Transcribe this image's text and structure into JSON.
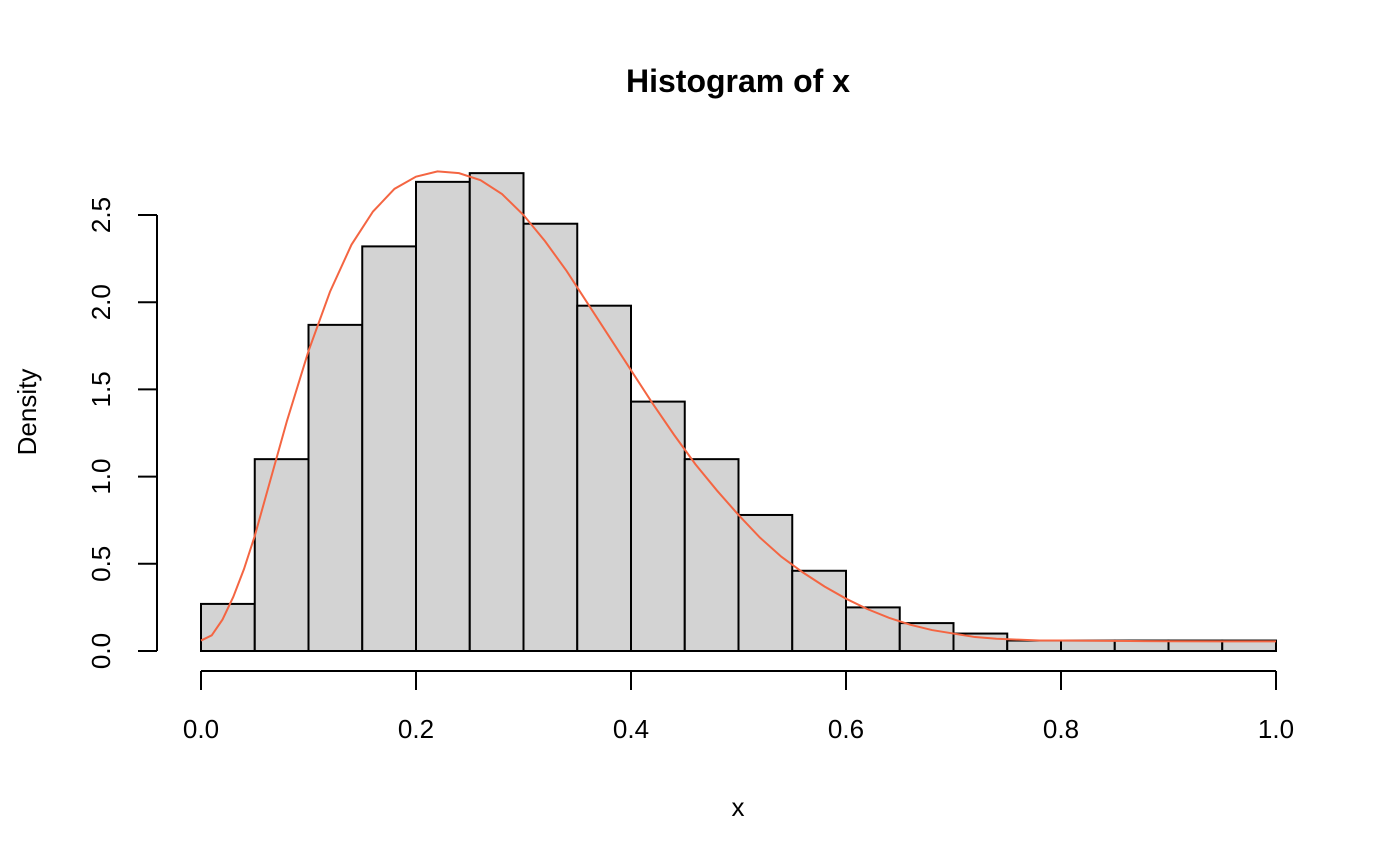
{
  "chart_data": {
    "type": "bar",
    "title": "Histogram of x",
    "xlabel": "x",
    "ylabel": "Density",
    "xlim": [
      0,
      1
    ],
    "ylim": [
      0,
      2.75
    ],
    "breaks": [
      0.0,
      0.05,
      0.1,
      0.15,
      0.2,
      0.25,
      0.3,
      0.35,
      0.4,
      0.45,
      0.5,
      0.55,
      0.6,
      0.65,
      0.7,
      0.75,
      0.8,
      0.85,
      0.9,
      0.95,
      1.0
    ],
    "values": [
      0.27,
      1.1,
      1.87,
      2.32,
      2.69,
      2.74,
      2.45,
      1.98,
      1.43,
      1.1,
      0.78,
      0.46,
      0.25,
      0.16,
      0.1,
      0.06,
      0.06,
      0.06,
      0.06,
      0.06
    ],
    "x_ticks": [
      {
        "value": 0.0,
        "label": "0.0"
      },
      {
        "value": 0.2,
        "label": "0.2"
      },
      {
        "value": 0.4,
        "label": "0.4"
      },
      {
        "value": 0.6,
        "label": "0.6"
      },
      {
        "value": 0.8,
        "label": "0.8"
      },
      {
        "value": 1.0,
        "label": "1.0"
      }
    ],
    "y_ticks": [
      {
        "value": 0.0,
        "label": "0.0"
      },
      {
        "value": 0.5,
        "label": "0.5"
      },
      {
        "value": 1.0,
        "label": "1.0"
      },
      {
        "value": 1.5,
        "label": "1.5"
      },
      {
        "value": 2.0,
        "label": "2.0"
      },
      {
        "value": 2.5,
        "label": "2.5"
      }
    ],
    "density_curve": {
      "x": [
        0.0,
        0.01,
        0.02,
        0.03,
        0.04,
        0.05,
        0.06,
        0.07,
        0.08,
        0.1,
        0.12,
        0.14,
        0.16,
        0.18,
        0.2,
        0.22,
        0.24,
        0.26,
        0.28,
        0.3,
        0.32,
        0.34,
        0.36,
        0.38,
        0.4,
        0.42,
        0.44,
        0.46,
        0.48,
        0.5,
        0.52,
        0.54,
        0.56,
        0.58,
        0.6,
        0.62,
        0.64,
        0.66,
        0.68,
        0.7,
        0.72,
        0.74,
        0.76,
        0.78,
        0.8,
        0.85,
        0.9,
        0.95,
        1.0
      ],
      "y": [
        0.06,
        0.09,
        0.18,
        0.31,
        0.47,
        0.66,
        0.88,
        1.1,
        1.32,
        1.72,
        2.06,
        2.33,
        2.52,
        2.65,
        2.72,
        2.75,
        2.74,
        2.7,
        2.62,
        2.5,
        2.35,
        2.18,
        1.99,
        1.8,
        1.61,
        1.42,
        1.24,
        1.07,
        0.92,
        0.78,
        0.65,
        0.54,
        0.45,
        0.37,
        0.3,
        0.24,
        0.19,
        0.15,
        0.12,
        0.1,
        0.08,
        0.07,
        0.065,
        0.06,
        0.06,
        0.058,
        0.056,
        0.055,
        0.055
      ]
    },
    "grid": false,
    "colors": {
      "bar_fill": "#d3d3d3",
      "bar_stroke": "#000000",
      "curve": "#f46542",
      "axis": "#000000"
    }
  }
}
